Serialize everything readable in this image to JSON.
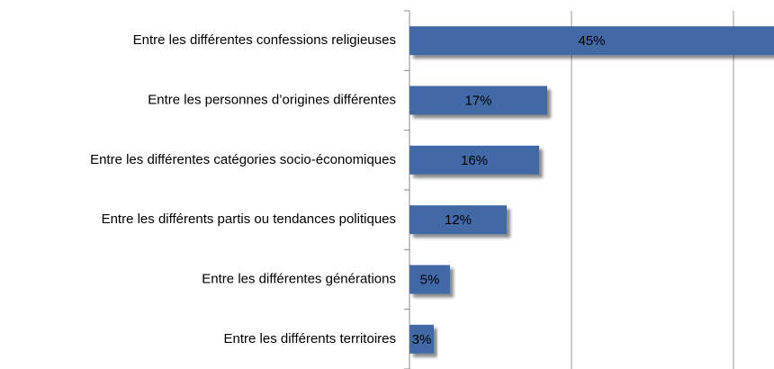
{
  "chart_data": {
    "type": "bar",
    "orientation": "horizontal",
    "categories": [
      "Entre les différentes confessions religieuses",
      "Entre les personnes d’origines différentes",
      "Entre les différentes catégories socio-économiques",
      "Entre les différents partis ou tendances politiques",
      "Entre les différentes générations",
      "Entre les différents territoires"
    ],
    "values": [
      45,
      17,
      16,
      12,
      5,
      3
    ],
    "value_labels": [
      "45%",
      "17%",
      "16%",
      "12%",
      "5%",
      "3%"
    ],
    "color": "#4169a6",
    "xlim": [
      0,
      45
    ],
    "xticks": [
      0,
      20,
      40
    ],
    "grid": true
  }
}
